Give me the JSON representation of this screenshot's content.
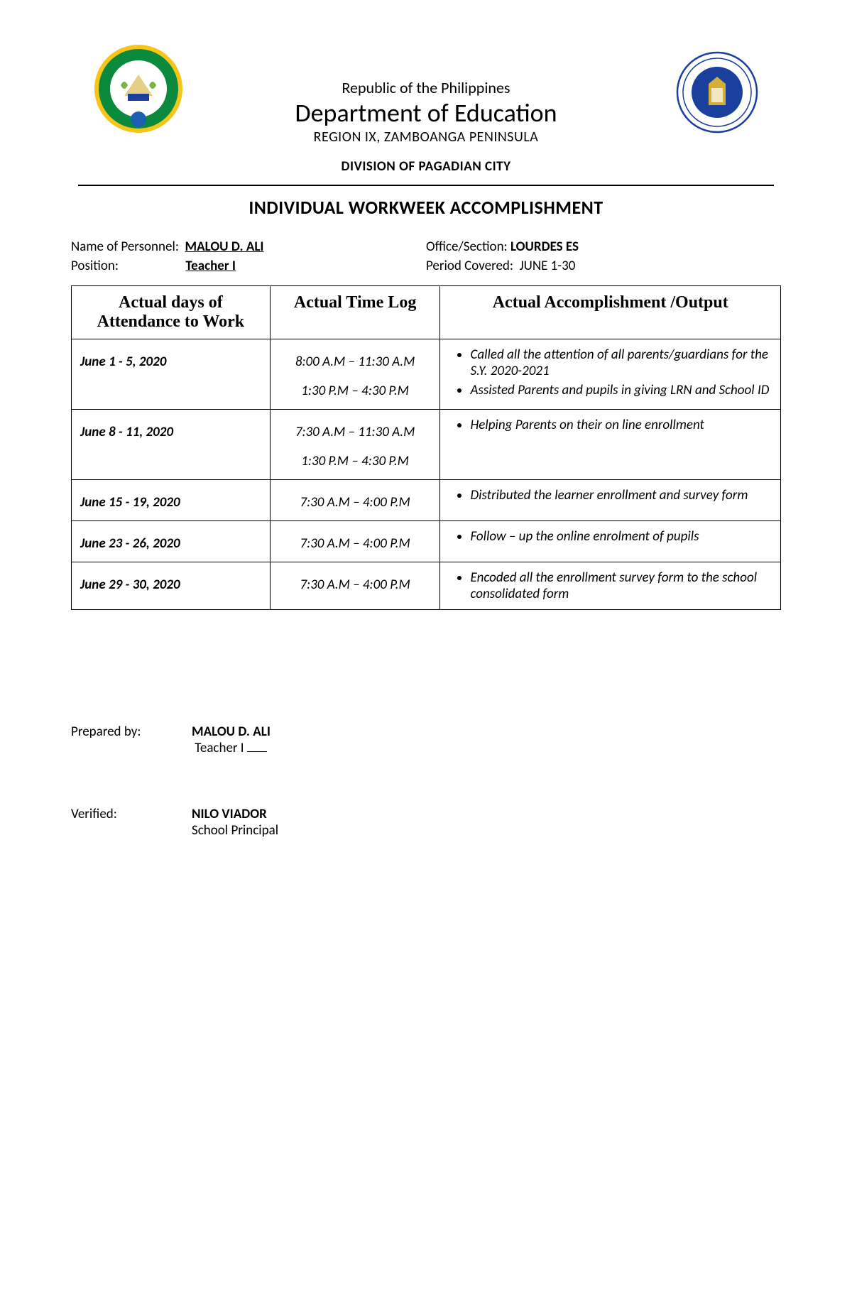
{
  "header": {
    "republic": "Republic of the Philippines",
    "department": "Department of Education",
    "region": "REGION IX, ZAMBOANGA PENINSULA",
    "division": "DIVISION OF PAGADIAN CITY"
  },
  "title": "INDIVIDUAL WORKWEEK ACCOMPLISHMENT",
  "info": {
    "name_label": "Name of Personnel:",
    "name_value": "MALOU D. ALI",
    "office_label": "Office/Section:",
    "office_value": "LOURDES ES",
    "position_label": "Position:",
    "position_value": "Teacher I",
    "period_label": "Period Covered:",
    "period_value": "JUNE 1-30"
  },
  "table": {
    "headers": {
      "col1": "Actual days of Attendance to Work",
      "col2": "Actual Time Log",
      "col3": "Actual Accomplishment /Output"
    },
    "rows": [
      {
        "date": "June 1 - 5,  2020",
        "times": [
          "8:00 A.M – 11:30 A.M",
          "1:30 P.M – 4:30 P.M"
        ],
        "outputs": [
          "Called all the attention of all parents/guardians for the S.Y. 2020-2021",
          "Assisted Parents and pupils in giving LRN and School ID"
        ]
      },
      {
        "date": "June 8 - 11,  2020",
        "times": [
          "7:30 A.M – 11:30 A.M",
          "1:30 P.M – 4:30 P.M"
        ],
        "outputs": [
          "Helping Parents on their on line enrollment"
        ]
      },
      {
        "date": "June 15 -  19,  2020",
        "times": [
          "7:30 A.M – 4:00 P.M"
        ],
        "outputs": [
          "Distributed the learner enrollment and survey form"
        ]
      },
      {
        "date": "June 23 -  26,  2020",
        "times": [
          "7:30 A.M – 4:00 P.M"
        ],
        "outputs": [
          "Follow – up the online enrolment of pupils"
        ]
      },
      {
        "date": "June 29 -  30,  2020",
        "times": [
          "7:30 A.M – 4:00 P.M"
        ],
        "outputs": [
          "Encoded all the enrollment survey form to the school consolidated form"
        ]
      }
    ]
  },
  "signatures": {
    "prepared_label": "Prepared by:",
    "prepared_name": "MALOU D. ALI",
    "prepared_title": "Teacher I",
    "verified_label": "Verified:",
    "verified_name": "NILO VIADOR",
    "verified_title": "School Principal"
  },
  "logo_colors": {
    "left_outer": "#0b8a3e",
    "left_ring": "#f5c518",
    "left_inner": "#ffffff",
    "right_outer": "#1b3f9c",
    "right_ring": "#ffffff"
  }
}
